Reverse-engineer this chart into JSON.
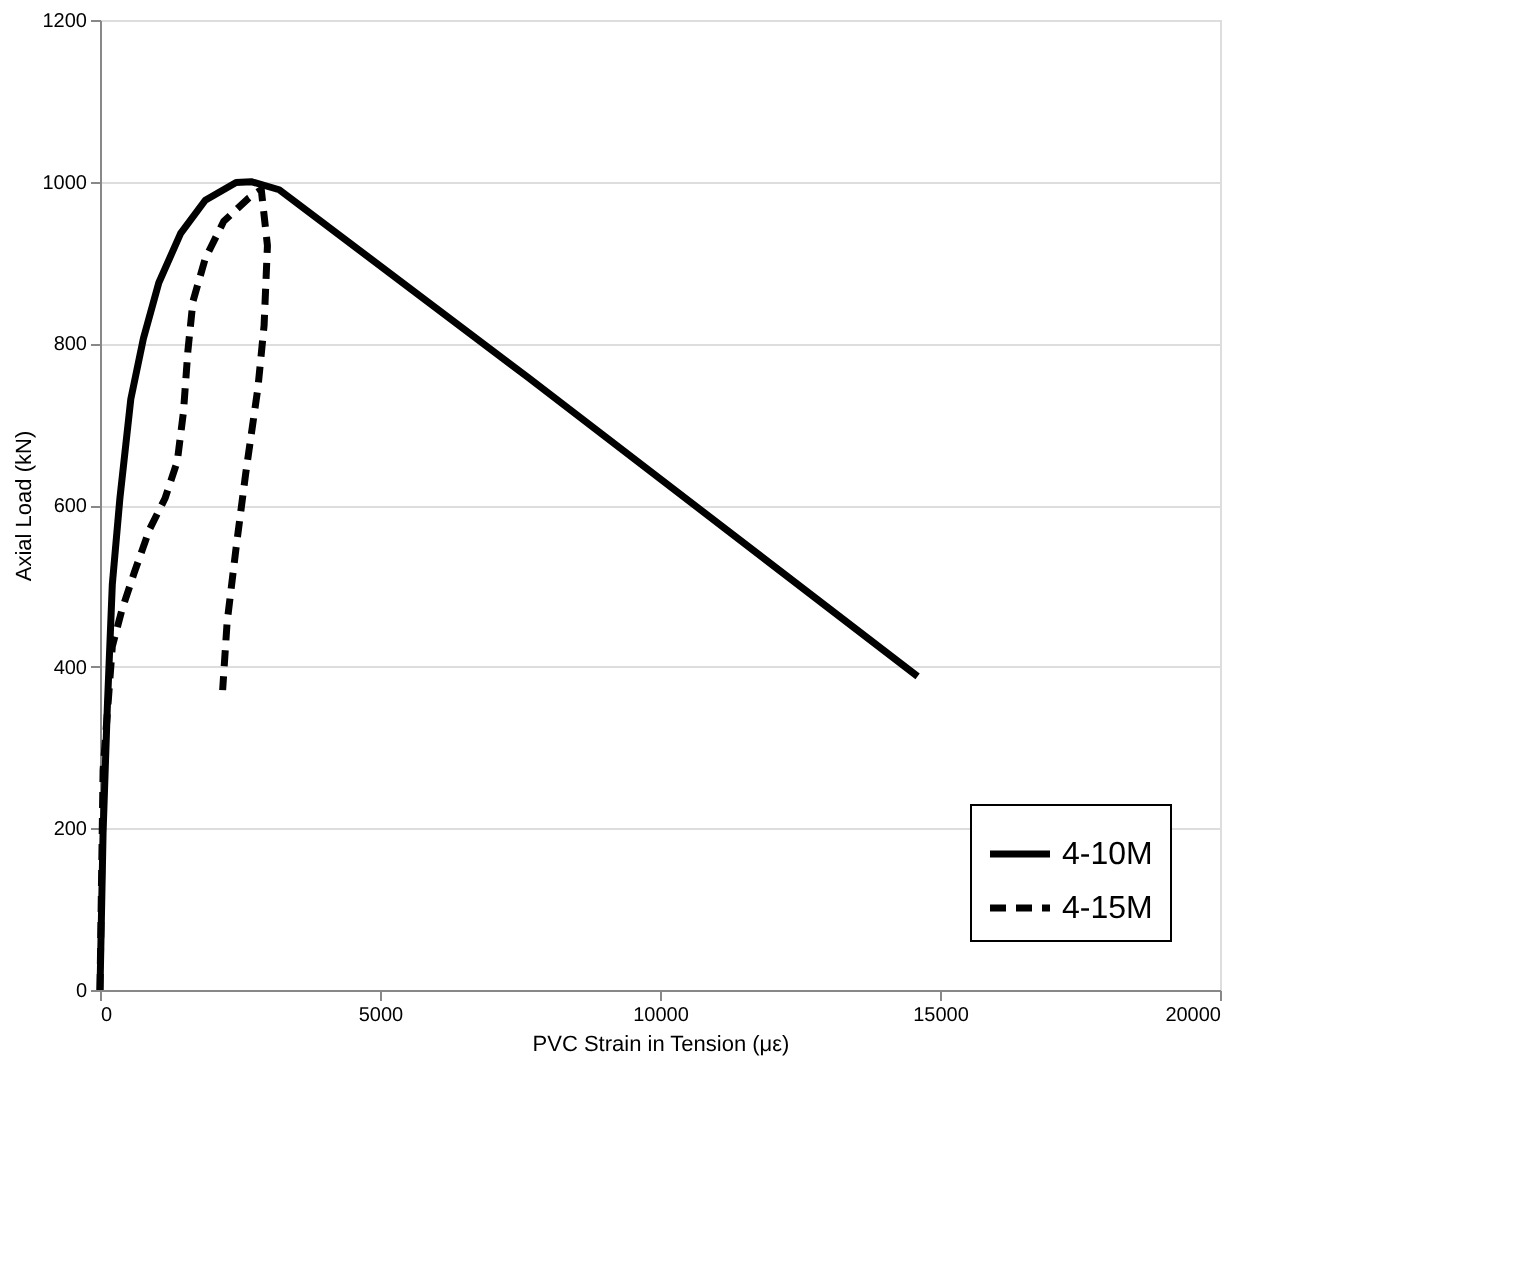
{
  "chart_data": {
    "type": "line",
    "xlabel": "PVC Strain in Tension (με)",
    "ylabel": "Axial Load (kN)",
    "xlim": [
      0,
      20000
    ],
    "xticks": [
      0,
      5000,
      10000,
      15000,
      20000
    ],
    "ylim": [
      0,
      1200
    ],
    "yticks": [
      0,
      200,
      400,
      600,
      800,
      1000,
      1200
    ],
    "grid": "y",
    "legend": "bottom right",
    "marker": "none",
    "series": [
      {
        "name": "4-10M",
        "color": "#000000",
        "line_style": "solid",
        "x": [
          0,
          55,
          130,
          220,
          355,
          550,
          775,
          1050,
          1440,
          1880,
          2430,
          2700,
          3200,
          7640,
          14600
        ],
        "values": [
          0,
          195,
          348,
          502,
          608,
          731,
          806,
          875,
          936,
          977,
          999,
          1000,
          990,
          758,
          388
        ]
      },
      {
        "name": "4-15M",
        "color": "#000000",
        "line_style": "dashed",
        "x": [
          0,
          55,
          220,
          390,
          610,
          885,
          1160,
          1380,
          1490,
          1570,
          1660,
          1880,
          2210,
          2660,
          2880,
          2990,
          2930,
          2820,
          2600,
          2430,
          2270,
          2190
        ],
        "values": [
          0,
          272,
          425,
          470,
          516,
          570,
          608,
          654,
          715,
          791,
          852,
          905,
          951,
          980,
          990,
          921,
          822,
          745,
          638,
          547,
          455,
          371
        ]
      }
    ]
  }
}
